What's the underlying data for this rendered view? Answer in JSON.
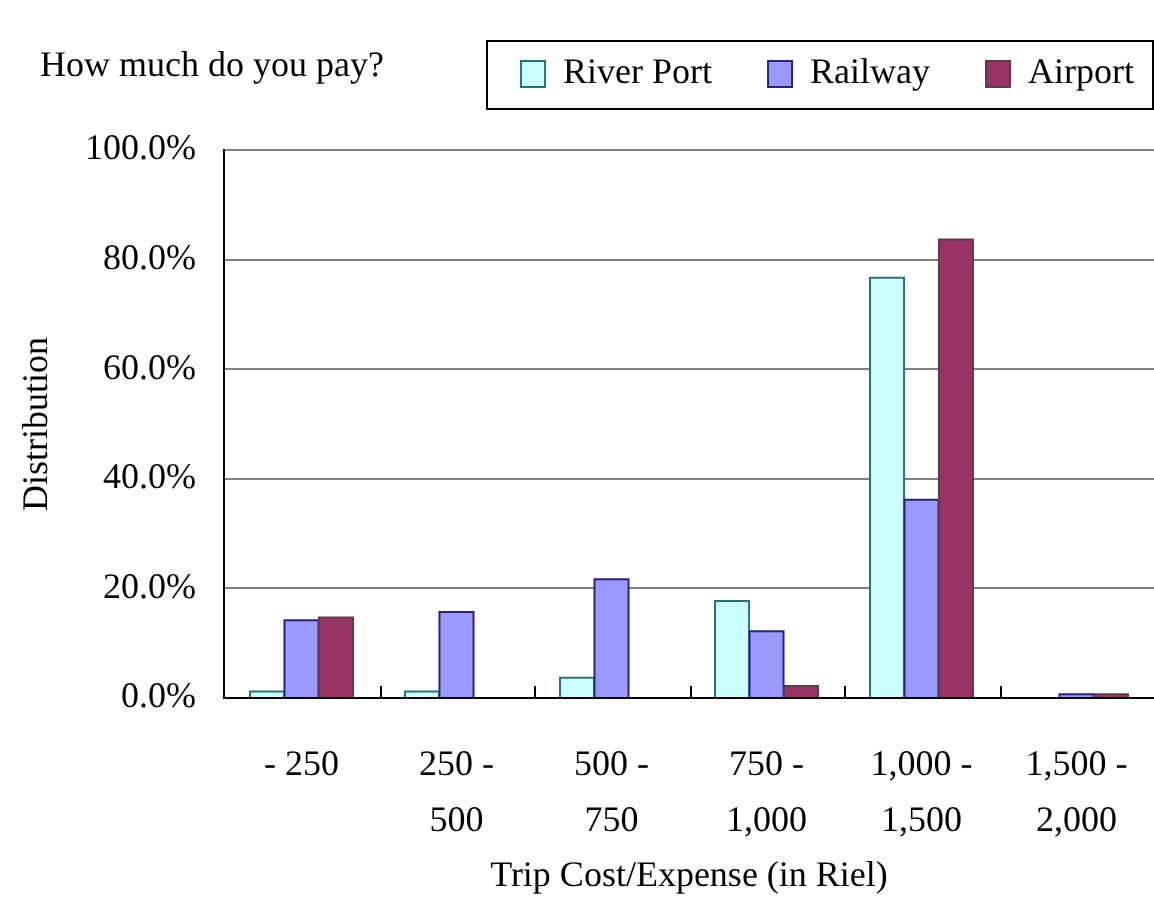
{
  "chart_data": {
    "type": "bar",
    "title": "How much do you pay?",
    "xlabel": "Trip Cost/Expense (in Riel)",
    "ylabel": "Distribution",
    "categories": [
      "- 250",
      "250 - 500",
      "500 - 750",
      "750 - 1,000",
      "1,000 - 1,500",
      "1,500 - 2,000"
    ],
    "series": [
      {
        "name": "River Port",
        "color": "#ccffff",
        "values": [
          1,
          1,
          3.5,
          17.5,
          76.5,
          0
        ]
      },
      {
        "name": "Railway",
        "color": "#9999ff",
        "values": [
          14,
          15.5,
          21.5,
          12,
          36,
          0.5
        ]
      },
      {
        "name": "Airport",
        "color": "#993366",
        "values": [
          14.5,
          0,
          0,
          2,
          83.5,
          0.5
        ]
      }
    ],
    "ylim": [
      0,
      100
    ],
    "yticks": [
      {
        "value": 0,
        "label": "0.0%"
      },
      {
        "value": 20,
        "label": "20.0%"
      },
      {
        "value": 40,
        "label": "40.0%"
      },
      {
        "value": 60,
        "label": "60.0%"
      },
      {
        "value": 80,
        "label": "80.0%"
      },
      {
        "value": 100,
        "label": "100.0%"
      }
    ],
    "grid": "y",
    "legend": "top right"
  }
}
